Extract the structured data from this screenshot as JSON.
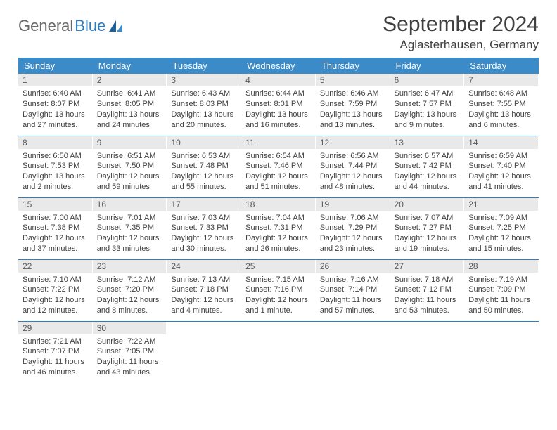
{
  "logo": {
    "text1": "General",
    "text2": "Blue"
  },
  "title": "September 2024",
  "location": "Aglasterhausen, Germany",
  "header_bg": "#3b8bc9",
  "daynum_bg": "#e9e9e9",
  "border_color": "#2f7bbf",
  "weekdays": [
    "Sunday",
    "Monday",
    "Tuesday",
    "Wednesday",
    "Thursday",
    "Friday",
    "Saturday"
  ],
  "days": [
    {
      "n": "1",
      "sr": "6:40 AM",
      "ss": "8:07 PM",
      "dl": "13 hours and 27 minutes."
    },
    {
      "n": "2",
      "sr": "6:41 AM",
      "ss": "8:05 PM",
      "dl": "13 hours and 24 minutes."
    },
    {
      "n": "3",
      "sr": "6:43 AM",
      "ss": "8:03 PM",
      "dl": "13 hours and 20 minutes."
    },
    {
      "n": "4",
      "sr": "6:44 AM",
      "ss": "8:01 PM",
      "dl": "13 hours and 16 minutes."
    },
    {
      "n": "5",
      "sr": "6:46 AM",
      "ss": "7:59 PM",
      "dl": "13 hours and 13 minutes."
    },
    {
      "n": "6",
      "sr": "6:47 AM",
      "ss": "7:57 PM",
      "dl": "13 hours and 9 minutes."
    },
    {
      "n": "7",
      "sr": "6:48 AM",
      "ss": "7:55 PM",
      "dl": "13 hours and 6 minutes."
    },
    {
      "n": "8",
      "sr": "6:50 AM",
      "ss": "7:53 PM",
      "dl": "13 hours and 2 minutes."
    },
    {
      "n": "9",
      "sr": "6:51 AM",
      "ss": "7:50 PM",
      "dl": "12 hours and 59 minutes."
    },
    {
      "n": "10",
      "sr": "6:53 AM",
      "ss": "7:48 PM",
      "dl": "12 hours and 55 minutes."
    },
    {
      "n": "11",
      "sr": "6:54 AM",
      "ss": "7:46 PM",
      "dl": "12 hours and 51 minutes."
    },
    {
      "n": "12",
      "sr": "6:56 AM",
      "ss": "7:44 PM",
      "dl": "12 hours and 48 minutes."
    },
    {
      "n": "13",
      "sr": "6:57 AM",
      "ss": "7:42 PM",
      "dl": "12 hours and 44 minutes."
    },
    {
      "n": "14",
      "sr": "6:59 AM",
      "ss": "7:40 PM",
      "dl": "12 hours and 41 minutes."
    },
    {
      "n": "15",
      "sr": "7:00 AM",
      "ss": "7:38 PM",
      "dl": "12 hours and 37 minutes."
    },
    {
      "n": "16",
      "sr": "7:01 AM",
      "ss": "7:35 PM",
      "dl": "12 hours and 33 minutes."
    },
    {
      "n": "17",
      "sr": "7:03 AM",
      "ss": "7:33 PM",
      "dl": "12 hours and 30 minutes."
    },
    {
      "n": "18",
      "sr": "7:04 AM",
      "ss": "7:31 PM",
      "dl": "12 hours and 26 minutes."
    },
    {
      "n": "19",
      "sr": "7:06 AM",
      "ss": "7:29 PM",
      "dl": "12 hours and 23 minutes."
    },
    {
      "n": "20",
      "sr": "7:07 AM",
      "ss": "7:27 PM",
      "dl": "12 hours and 19 minutes."
    },
    {
      "n": "21",
      "sr": "7:09 AM",
      "ss": "7:25 PM",
      "dl": "12 hours and 15 minutes."
    },
    {
      "n": "22",
      "sr": "7:10 AM",
      "ss": "7:22 PM",
      "dl": "12 hours and 12 minutes."
    },
    {
      "n": "23",
      "sr": "7:12 AM",
      "ss": "7:20 PM",
      "dl": "12 hours and 8 minutes."
    },
    {
      "n": "24",
      "sr": "7:13 AM",
      "ss": "7:18 PM",
      "dl": "12 hours and 4 minutes."
    },
    {
      "n": "25",
      "sr": "7:15 AM",
      "ss": "7:16 PM",
      "dl": "12 hours and 1 minute."
    },
    {
      "n": "26",
      "sr": "7:16 AM",
      "ss": "7:14 PM",
      "dl": "11 hours and 57 minutes."
    },
    {
      "n": "27",
      "sr": "7:18 AM",
      "ss": "7:12 PM",
      "dl": "11 hours and 53 minutes."
    },
    {
      "n": "28",
      "sr": "7:19 AM",
      "ss": "7:09 PM",
      "dl": "11 hours and 50 minutes."
    },
    {
      "n": "29",
      "sr": "7:21 AM",
      "ss": "7:07 PM",
      "dl": "11 hours and 46 minutes."
    },
    {
      "n": "30",
      "sr": "7:22 AM",
      "ss": "7:05 PM",
      "dl": "11 hours and 43 minutes."
    }
  ],
  "labels": {
    "sunrise": "Sunrise: ",
    "sunset": "Sunset: ",
    "daylight": "Daylight: "
  }
}
